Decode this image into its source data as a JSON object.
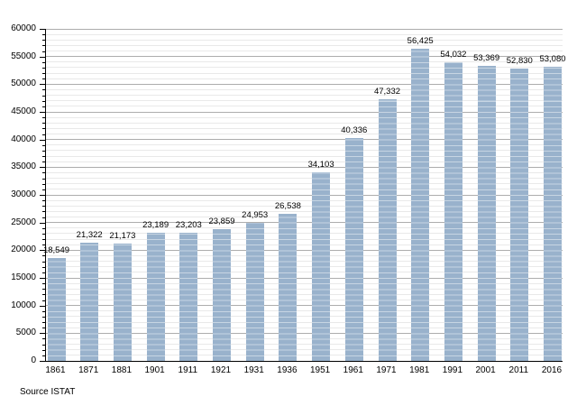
{
  "chart_data": {
    "type": "bar",
    "title": "",
    "xlabel": "",
    "ylabel": "",
    "categories": [
      "1861",
      "1871",
      "1881",
      "1901",
      "1911",
      "1921",
      "1931",
      "1936",
      "1951",
      "1961",
      "1971",
      "1981",
      "1991",
      "2001",
      "2011",
      "2016"
    ],
    "values": [
      18549,
      21322,
      21173,
      23189,
      23203,
      23859,
      24953,
      26538,
      34103,
      40336,
      47332,
      56425,
      54032,
      53369,
      52830,
      53080
    ],
    "value_labels": [
      "18,549",
      "21,322",
      "21,173",
      "23,189",
      "23,203",
      "23,859",
      "24,953",
      "26,538",
      "34,103",
      "40,336",
      "47,332",
      "56,425",
      "54,032",
      "53,369",
      "52,830",
      "53,080"
    ],
    "ylim": [
      0,
      60000
    ],
    "ytick_step": 5000,
    "minor_tick_step": 1000,
    "ytick_labels": [
      "0",
      "5000",
      "10000",
      "15000",
      "20000",
      "25000",
      "30000",
      "35000",
      "40000",
      "45000",
      "50000",
      "55000",
      "60000"
    ],
    "grid": "on",
    "legend": "none",
    "source": "Source ISTAT"
  },
  "colors": {
    "bar": "#99B2CC",
    "major_grid": "#ADADAD",
    "minor_grid": "#E9E9E9",
    "axis": "#000000",
    "text": "#000000",
    "background": "#FFFFFF"
  }
}
